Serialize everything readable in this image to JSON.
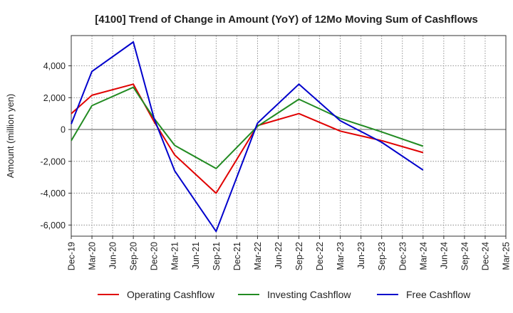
{
  "chart_data": {
    "type": "line",
    "title": "[4100]  Trend of Change in Amount (YoY) of 12Mo Moving Sum of Cashflows",
    "xlabel": "",
    "ylabel": "Amount (million yen)",
    "ylim": [
      -6700,
      5900
    ],
    "yticks": [
      -6000,
      -4000,
      -2000,
      0,
      2000,
      4000
    ],
    "ytick_labels": [
      "-6,000",
      "-4,000",
      "-2,000",
      "0",
      "2,000",
      "4,000"
    ],
    "categories": [
      "Dec-19",
      "Mar-20",
      "Jun-20",
      "Sep-20",
      "Dec-20",
      "Mar-21",
      "Jun-21",
      "Sep-21",
      "Dec-21",
      "Mar-22",
      "Jun-22",
      "Sep-22",
      "Dec-22",
      "Mar-23",
      "Jun-23",
      "Sep-23",
      "Dec-23",
      "Mar-24",
      "Jun-24",
      "Sep-24",
      "Dec-24",
      "Mar-25"
    ],
    "grid": true,
    "legend_position": "bottom",
    "series": [
      {
        "name": "Operating Cashflow",
        "color": "#e00000",
        "points": [
          {
            "x": "Dec-19",
            "y": 1000
          },
          {
            "x": "Mar-20",
            "y": 2150
          },
          {
            "x": "Sep-20",
            "y": 2850
          },
          {
            "x": "Dec-20",
            "y": 500
          },
          {
            "x": "Mar-21",
            "y": -1600
          },
          {
            "x": "Sep-21",
            "y": -4000
          },
          {
            "x": "Mar-22",
            "y": 250
          },
          {
            "x": "Sep-22",
            "y": 1000
          },
          {
            "x": "Mar-23",
            "y": -100
          },
          {
            "x": "Sep-23",
            "y": -700
          },
          {
            "x": "Mar-24",
            "y": -1450
          }
        ]
      },
      {
        "name": "Investing Cashflow",
        "color": "#228b22",
        "points": [
          {
            "x": "Dec-19",
            "y": -700
          },
          {
            "x": "Mar-20",
            "y": 1500
          },
          {
            "x": "Sep-20",
            "y": 2650
          },
          {
            "x": "Dec-20",
            "y": 700
          },
          {
            "x": "Mar-21",
            "y": -1000
          },
          {
            "x": "Sep-21",
            "y": -2450
          },
          {
            "x": "Mar-22",
            "y": 200
          },
          {
            "x": "Sep-22",
            "y": 1900
          },
          {
            "x": "Mar-23",
            "y": 700
          },
          {
            "x": "Sep-23",
            "y": -150
          },
          {
            "x": "Mar-24",
            "y": -1050
          }
        ]
      },
      {
        "name": "Free Cashflow",
        "color": "#0000cc",
        "points": [
          {
            "x": "Dec-19",
            "y": 350
          },
          {
            "x": "Mar-20",
            "y": 3650
          },
          {
            "x": "Sep-20",
            "y": 5500
          },
          {
            "x": "Dec-20",
            "y": 700
          },
          {
            "x": "Mar-21",
            "y": -2600
          },
          {
            "x": "Sep-21",
            "y": -6400
          },
          {
            "x": "Mar-22",
            "y": 400
          },
          {
            "x": "Sep-22",
            "y": 2850
          },
          {
            "x": "Mar-23",
            "y": 550
          },
          {
            "x": "Sep-23",
            "y": -800
          },
          {
            "x": "Mar-24",
            "y": -2550
          }
        ]
      }
    ]
  }
}
